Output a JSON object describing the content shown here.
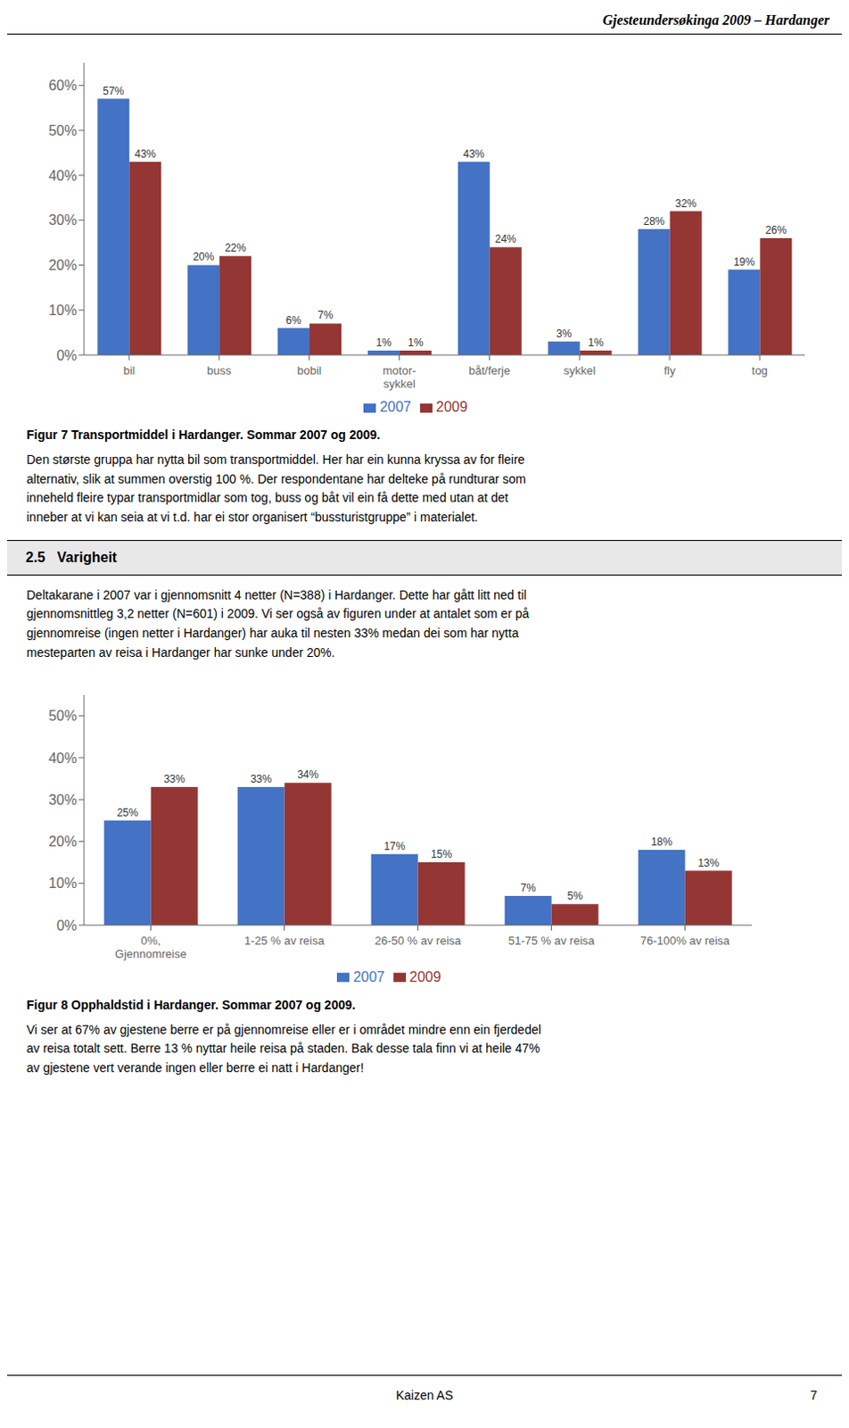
{
  "title": "Gjesteundersøkinga 2009 – Hardanger",
  "annotations": [
    "Den største gruppa har nytta bil som transportmiddel. Her har ein kunna kryssa av for fleire\nalternativ, slik at summen overstig 100 %. Der respondentane har delteke på rundturar som\ninneheld fleire typar transportmidlar som tog, buss og båt vil ein få dette med utan at det\ninneber at vi kan seia at vi t.d. har ei stor organisert “bussturistgruppe” i materialet.",
    "2.5   Varigheit",
    "Deltakarane i 2007 var i gjennomsnitt 4 netter (N=388) i Hardanger. Dette har gått litt ned til\ngjennomsnittleg 3,2 netter (N=601) i 2009. Vi ser også av figuren under at antalet som er på\ngjennomreise (ingen netter i Hardanger) har auka til nesten 33% medan dei som har nytta\nmesteparten av reisa i Hardanger har sunke under 20%.",
    "Vi ser at 67% av gjestene berre er på gjennomreise eller er i området mindre enn ein fjerdedel\nav reisa totalt sett. Berre 13 % nyttar heile reisa på staden. Bak desse tala finn vi at heile 47%\nav gjestene vert verande ingen eller berre ei natt i Hardanger!",
    "Kaizen AS",
    "7"
  ],
  "chart_data": [
    {
      "type": "bar",
      "title": "Figur 7 Transportmiddel i Hardanger. Sommar 2007 og 2009.",
      "categories": [
        "bil",
        "buss",
        "bobil",
        "motor-\nsykkel",
        "båt/ferje",
        "sykkel",
        "fly",
        "tog"
      ],
      "series": [
        {
          "name": "2007",
          "color": "#4472C4",
          "values": [
            57,
            20,
            6,
            1,
            43,
            3,
            28,
            19
          ],
          "value_labels": [
            "57%",
            "20%",
            "6%",
            "1%",
            "43%",
            "3%",
            "28%",
            "19%"
          ]
        },
        {
          "name": "2009",
          "color": "#943634",
          "values": [
            43,
            22,
            7,
            1,
            24,
            1,
            32,
            26
          ],
          "value_labels": [
            "43%",
            "22%",
            "7%",
            "1%",
            "24%",
            "1%",
            "32%",
            "26%"
          ]
        }
      ],
      "ylim": [
        0,
        65
      ],
      "yticks": [
        {
          "value": 0,
          "label": "0%"
        },
        {
          "value": 10,
          "label": "10%"
        },
        {
          "value": 20,
          "label": "20%"
        },
        {
          "value": 30,
          "label": "30%"
        },
        {
          "value": 40,
          "label": "40%"
        },
        {
          "value": 50,
          "label": "50%"
        },
        {
          "value": 60,
          "label": "60%"
        }
      ],
      "grid": false,
      "legend": "bottom",
      "data_labels": true
    },
    {
      "type": "bar",
      "title": "Figur 8 Opphaldstid i Hardanger. Sommar 2007 og 2009.",
      "categories": [
        "0%,\nGjennomreise",
        "1-25 % av reisa",
        "26-50 % av reisa",
        "51-75 % av reisa",
        "76-100% av reisa"
      ],
      "series": [
        {
          "name": "2007",
          "color": "#4472C4",
          "values": [
            25,
            33,
            17,
            7,
            18
          ],
          "value_labels": [
            "25%",
            "33%",
            "17%",
            "7%",
            "18%"
          ]
        },
        {
          "name": "2009",
          "color": "#943634",
          "values": [
            33,
            34,
            15,
            5,
            13
          ],
          "value_labels": [
            "33%",
            "34%",
            "15%",
            "5%",
            "13%"
          ]
        }
      ],
      "ylim": [
        0,
        55
      ],
      "yticks": [
        {
          "value": 0,
          "label": "0%"
        },
        {
          "value": 10,
          "label": "10%"
        },
        {
          "value": 20,
          "label": "20%"
        },
        {
          "value": 30,
          "label": "30%"
        },
        {
          "value": 40,
          "label": "40%"
        },
        {
          "value": 50,
          "label": "50%"
        }
      ],
      "grid": false,
      "legend": "bottom",
      "data_labels": true
    }
  ]
}
